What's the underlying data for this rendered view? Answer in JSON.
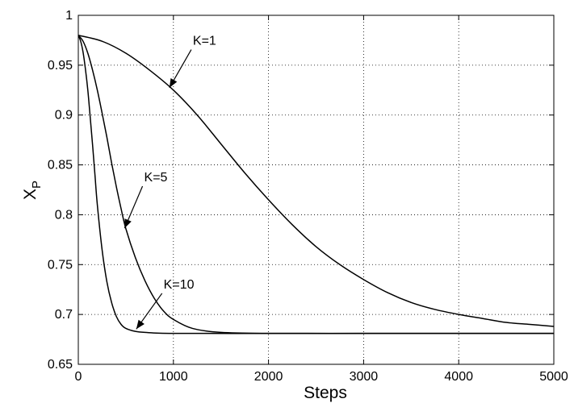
{
  "chart_data": {
    "type": "line",
    "xlabel": "Steps",
    "ylabel": "X",
    "ylabel_subscript": "P",
    "xlim": [
      0,
      5000
    ],
    "ylim": [
      0.65,
      1.0
    ],
    "xticks": [
      0,
      1000,
      2000,
      3000,
      4000,
      5000
    ],
    "yticks": [
      0.65,
      0.7,
      0.75,
      0.8,
      0.85,
      0.9,
      0.95,
      1.0
    ],
    "xtick_labels": [
      "0",
      "1000",
      "2000",
      "3000",
      "4000",
      "5000"
    ],
    "ytick_labels": [
      "0.65",
      "0.7",
      "0.75",
      "0.8",
      "0.85",
      "0.9",
      "0.95",
      "1"
    ],
    "grid": true,
    "line_color": "#000000",
    "series": [
      {
        "name": "K=1",
        "x": [
          0,
          250,
          500,
          750,
          1000,
          1250,
          1500,
          1750,
          2000,
          2250,
          2500,
          2750,
          3000,
          3250,
          3500,
          3750,
          4000,
          4250,
          4500,
          4750,
          5000
        ],
        "y": [
          0.98,
          0.974,
          0.962,
          0.945,
          0.925,
          0.9,
          0.871,
          0.842,
          0.815,
          0.79,
          0.768,
          0.75,
          0.735,
          0.722,
          0.712,
          0.705,
          0.7,
          0.696,
          0.692,
          0.69,
          0.688
        ]
      },
      {
        "name": "K=5",
        "x": [
          0,
          50,
          100,
          150,
          200,
          250,
          300,
          350,
          400,
          450,
          500,
          600,
          700,
          800,
          900,
          1000,
          1200,
          1500,
          2000,
          3000,
          4000,
          5000
        ],
        "y": [
          0.98,
          0.974,
          0.962,
          0.945,
          0.925,
          0.902,
          0.878,
          0.852,
          0.828,
          0.806,
          0.786,
          0.757,
          0.734,
          0.716,
          0.703,
          0.695,
          0.686,
          0.682,
          0.681,
          0.681,
          0.681,
          0.681
        ]
      },
      {
        "name": "K=10",
        "x": [
          0,
          25,
          50,
          75,
          100,
          125,
          150,
          175,
          200,
          250,
          300,
          350,
          400,
          450,
          500,
          600,
          700,
          1000,
          2000,
          3000,
          4000,
          5000
        ],
        "y": [
          0.98,
          0.974,
          0.963,
          0.946,
          0.925,
          0.898,
          0.87,
          0.84,
          0.81,
          0.765,
          0.733,
          0.712,
          0.698,
          0.69,
          0.686,
          0.683,
          0.682,
          0.681,
          0.681,
          0.681,
          0.681,
          0.681
        ]
      }
    ],
    "annotations": [
      {
        "text": "K=1",
        "series": "K=1",
        "point": [
          950,
          0.926
        ]
      },
      {
        "text": "K=5",
        "series": "K=5",
        "point": [
          480,
          0.785
        ]
      },
      {
        "text": "K=10",
        "series": "K=10",
        "point": [
          600,
          0.684
        ]
      }
    ]
  }
}
